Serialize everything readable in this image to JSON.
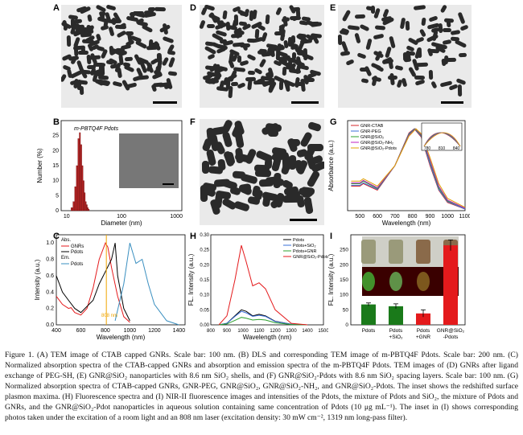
{
  "panels": {
    "A": "A",
    "B": "B",
    "C": "C",
    "D": "D",
    "E": "E",
    "F": "F",
    "G": "G",
    "H": "H",
    "I": "I"
  },
  "panel_b": {
    "title": "m-PBTQ4F Pdots",
    "xlabel": "Diameter (nm)",
    "ylabel": "Number (%)",
    "xticks": [
      "10",
      "100",
      "1000"
    ],
    "yticks": [
      "0",
      "5",
      "10",
      "15",
      "20",
      "25"
    ]
  },
  "panel_c": {
    "xlabel": "Wavelength (nm)",
    "ylabel": "Intensity (a.u.)",
    "xticks": [
      "400",
      "600",
      "800",
      "1000",
      "1200",
      "1400"
    ],
    "yticks": [
      "0.0",
      "0.2",
      "0.4",
      "0.6",
      "0.8",
      "1.0"
    ],
    "legend_abs": "Abs.",
    "legend_gnrs": "GNRs",
    "legend_pdots": "Pdots",
    "legend_em": "Em.",
    "legend_pdots2": "Pdots",
    "annotation": "808 nm"
  },
  "panel_g": {
    "xlabel": "Wavelength (nm)",
    "ylabel": "Absorbance (a.u.)",
    "xticks": [
      "500",
      "600",
      "700",
      "800",
      "900",
      "1000",
      "1100"
    ],
    "legend": [
      "GNR-CTAB",
      "GNR-PEG",
      "GNR@SiO₂",
      "GNR@SiO₂-NH₂",
      "GNR@SiO₂-Pdots"
    ],
    "inset_ticks": [
      "780",
      "810",
      "840"
    ]
  },
  "panel_h": {
    "xlabel": "Wavelength (nm)",
    "ylabel": "FL. Intensity (a.u.)",
    "xticks": [
      "800",
      "900",
      "1000",
      "1100",
      "1200",
      "1300",
      "1400",
      "1500"
    ],
    "yticks": [
      "0.00",
      "0.05",
      "0.10",
      "0.15",
      "0.20",
      "0.25",
      "0.30"
    ],
    "legend": [
      "Pdots",
      "Pdots+SiO₂",
      "Pdots+GNR",
      "GNR@SiO₂-Pdots"
    ]
  },
  "panel_i": {
    "ylabel": "FL. Intensity (a.u.)",
    "yticks": [
      "0",
      "50",
      "100",
      "150",
      "200",
      "250"
    ],
    "categories": [
      "Pdots",
      "Pdots +SiO₂",
      "Pdots +GNR",
      "GNR@SiO₂ -Pdots"
    ]
  },
  "colors": {
    "gnrs": "#e41a1c",
    "pdots": "#000000",
    "em": "#3a8fc0",
    "laser": "#f0a500",
    "ctab": "#d62728",
    "peg": "#3a6fd8",
    "sio2": "#2ca02c",
    "nh2": "#c020c0",
    "pdots_g": "#e0a000",
    "bar_green": "#1a7a1a"
  },
  "caption": "Figure 1. (A) TEM image of CTAB capped GNRs. Scale bar: 100 nm. (B) DLS and corresponding TEM image of m-PBTQ4F Pdots. Scale bar: 200 nm. (C) Normalized absorption spectra of the CTAB-capped GNRs and absorption and emission spectra of the m-PBTQ4F Pdots. TEM images of (D) GNRs after ligand exchange of PEG-SH, (E) GNR@SiO₂ nanoparticles with 8.6 nm SiO₂ shells, and (F) GNR@SiO₂-Pdots with 8.6 nm SiO₂ spacing layers. Scale bar: 100 nm. (G) Normalized absorption spectra of CTAB-capped GNRs, GNR-PEG, GNR@SiO₂, GNR@SiO₂-NH₂, and GNR@SiO₂-Pdots. The inset shows the redshifted surface plasmon maxima. (H) Fluorescence spectra and (I) NIR-II fluorescence images and intensities of the Pdots, the mixture of Pdots and SiO₂, the mixture of Pdots and GNRs, and the GNR@SiO₂-Pdot nanoparticles in aqueous solution containing same concentration of Pdots (10 μg mL⁻¹). The inset in (I) shows corresponding photos taken under the excitation of a room light and an 808 nm laser (excitation density: 30 mW cm⁻², 1319 nm long-pass filter).",
  "chart_data": [
    {
      "type": "bar",
      "title": "m-PBTQ4F Pdots",
      "xlabel": "Diameter (nm)",
      "ylabel": "Number (%)",
      "categories": [
        "12",
        "13",
        "14",
        "15",
        "16",
        "17",
        "18",
        "19",
        "20",
        "21",
        "22",
        "23",
        "24",
        "25"
      ],
      "values": [
        1,
        3,
        8,
        15,
        24,
        26,
        22,
        15,
        10,
        6,
        3,
        2,
        1,
        0.5
      ]
    },
    {
      "type": "line",
      "xlabel": "Wavelength (nm)",
      "ylabel": "Intensity (a.u.)",
      "series": [
        {
          "name": "GNRs",
          "x": [
            400,
            450,
            500,
            520,
            550,
            600,
            650,
            700,
            750,
            800,
            820,
            850,
            900,
            950,
            1000
          ],
          "y": [
            0.35,
            0.25,
            0.2,
            0.21,
            0.15,
            0.12,
            0.2,
            0.45,
            0.8,
            1.0,
            0.95,
            0.7,
            0.35,
            0.1,
            0.03
          ]
        },
        {
          "name": "Pdots",
          "x": [
            400,
            450,
            500,
            550,
            600,
            700,
            750,
            800,
            850,
            880,
            900,
            950,
            1000
          ],
          "y": [
            0.6,
            0.4,
            0.3,
            0.2,
            0.15,
            0.3,
            0.5,
            0.65,
            0.8,
            1.0,
            0.6,
            0.2,
            0.05
          ]
        },
        {
          "name": "Pdots",
          "x": [
            880,
            950,
            1000,
            1050,
            1100,
            1150,
            1200,
            1300,
            1400
          ],
          "y": [
            0.05,
            0.5,
            1.0,
            0.75,
            0.8,
            0.5,
            0.25,
            0.05,
            0.0
          ]
        }
      ]
    },
    {
      "type": "line",
      "xlabel": "Wavelength (nm)",
      "ylabel": "Absorbance (a.u.)",
      "series": [
        {
          "name": "GNR-CTAB",
          "x": [
            450,
            500,
            520,
            600,
            700,
            780,
            810,
            850,
            900,
            950,
            1000,
            1100
          ],
          "y": [
            0.3,
            0.3,
            0.33,
            0.25,
            0.55,
            0.95,
            1.0,
            0.9,
            0.55,
            0.25,
            0.1,
            0.02
          ]
        },
        {
          "name": "GNR-PEG",
          "x": [
            450,
            500,
            520,
            600,
            700,
            780,
            812,
            850,
            900,
            950,
            1000,
            1100
          ],
          "y": [
            0.31,
            0.31,
            0.34,
            0.26,
            0.55,
            0.94,
            1.0,
            0.91,
            0.57,
            0.26,
            0.11,
            0.02
          ]
        },
        {
          "name": "GNR@SiO₂",
          "x": [
            450,
            500,
            520,
            600,
            700,
            780,
            815,
            850,
            900,
            950,
            1000,
            1100
          ],
          "y": [
            0.33,
            0.33,
            0.36,
            0.27,
            0.55,
            0.93,
            1.0,
            0.92,
            0.6,
            0.28,
            0.12,
            0.03
          ]
        },
        {
          "name": "GNR@SiO₂-NH₂",
          "x": [
            450,
            500,
            520,
            600,
            700,
            780,
            818,
            850,
            900,
            950,
            1000,
            1100
          ],
          "y": [
            0.34,
            0.34,
            0.37,
            0.28,
            0.55,
            0.92,
            1.0,
            0.93,
            0.62,
            0.3,
            0.13,
            0.03
          ]
        },
        {
          "name": "GNR@SiO₂-Pdots",
          "x": [
            450,
            500,
            520,
            600,
            700,
            780,
            820,
            850,
            900,
            950,
            1000,
            1100
          ],
          "y": [
            0.36,
            0.36,
            0.39,
            0.3,
            0.55,
            0.91,
            1.0,
            0.94,
            0.65,
            0.33,
            0.15,
            0.04
          ]
        }
      ]
    },
    {
      "type": "line",
      "xlabel": "Wavelength (nm)",
      "ylabel": "FL. Intensity (a.u.)",
      "series": [
        {
          "name": "Pdots",
          "x": [
            850,
            900,
            950,
            990,
            1020,
            1060,
            1100,
            1140,
            1200,
            1300,
            1400
          ],
          "y": [
            0.0,
            0.005,
            0.03,
            0.05,
            0.045,
            0.03,
            0.035,
            0.03,
            0.012,
            0.002,
            0.0
          ]
        },
        {
          "name": "Pdots+SiO₂",
          "x": [
            850,
            900,
            950,
            990,
            1020,
            1060,
            1100,
            1140,
            1200,
            1300,
            1400
          ],
          "y": [
            0.0,
            0.005,
            0.028,
            0.045,
            0.04,
            0.028,
            0.032,
            0.028,
            0.011,
            0.002,
            0.0
          ]
        },
        {
          "name": "Pdots+GNR",
          "x": [
            850,
            900,
            950,
            990,
            1020,
            1060,
            1100,
            1140,
            1200,
            1300,
            1400
          ],
          "y": [
            0.0,
            0.003,
            0.015,
            0.025,
            0.022,
            0.016,
            0.018,
            0.016,
            0.007,
            0.001,
            0.0
          ]
        },
        {
          "name": "GNR@SiO₂-Pdots",
          "x": [
            850,
            900,
            950,
            990,
            1020,
            1060,
            1100,
            1140,
            1200,
            1300,
            1400
          ],
          "y": [
            0.0,
            0.03,
            0.15,
            0.265,
            0.21,
            0.13,
            0.14,
            0.12,
            0.05,
            0.005,
            0.0
          ]
        }
      ]
    },
    {
      "type": "bar",
      "ylabel": "FL. Intensity (a.u.)",
      "categories": [
        "Pdots",
        "Pdots +SiO₂",
        "Pdots +GNR",
        "GNR@SiO₂ -Pdots"
      ],
      "values": [
        68,
        62,
        38,
        265
      ],
      "errors": [
        5,
        8,
        12,
        18
      ],
      "ylim": [
        0,
        300
      ]
    }
  ]
}
